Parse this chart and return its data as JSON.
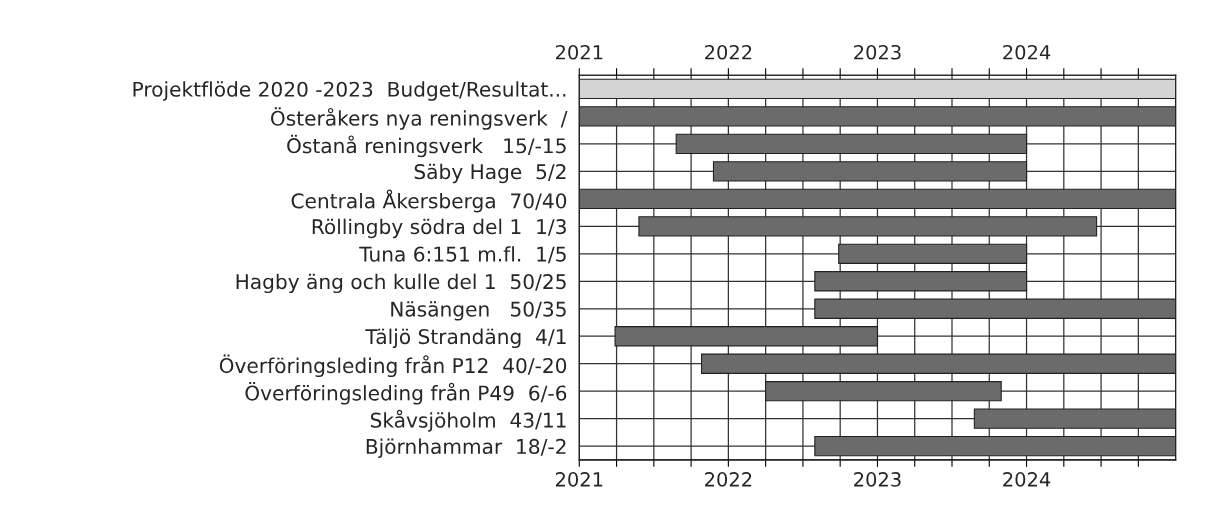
{
  "chart_data": {
    "type": "bar",
    "orientation": "horizontal",
    "categories": [
      "Projektflöde 2020 -2023  Budget/Resultat...",
      "Österåkers nya reningsverk  /",
      "Östanå reningsverk   15/-15",
      "Säby Hage  5/2",
      "Centrala Åkersberga  70/40",
      "Röllingby södra del 1  1/3",
      "Tuna 6:151 m.fl.  1/5",
      "Hagby äng och kulle del 1  50/25",
      "Näsängen   50/35",
      "Täljö Strandäng  4/1",
      "Överföringsleding från P12  40/-20",
      "Överföringsleding från P49  6/-6",
      "Skåvsjöholm  43/11",
      "Björnhammar  18/-2"
    ],
    "base": [
      2021,
      2021,
      2021.65,
      2021.9,
      2021,
      2021.4,
      2022.74,
      2022.58,
      2022.58,
      2021.24,
      2021.82,
      2022.25,
      2023.65,
      2022.58
    ],
    "values": [
      4,
      4,
      2.35,
      2.1,
      4,
      3.07,
      1.26,
      1.42,
      2.42,
      1.76,
      3.18,
      1.58,
      1.35,
      2.42
    ],
    "colors": [
      "#d4d4d4",
      "#6b6b6b",
      "#6b6b6b",
      "#6b6b6b",
      "#6b6b6b",
      "#6b6b6b",
      "#6b6b6b",
      "#6b6b6b",
      "#6b6b6b",
      "#6b6b6b",
      "#6b6b6b",
      "#6b6b6b",
      "#6b6b6b",
      "#6b6b6b"
    ],
    "xlim": [
      2021,
      2025
    ],
    "xticks": [
      2021,
      {
        "value": 2021.25,
        "label": null
      },
      {
        "value": 2021.5,
        "label": null
      },
      {
        "value": 2021.75,
        "label": null
      },
      2022,
      {
        "value": 2022.25,
        "label": null
      },
      {
        "value": 2022.5,
        "label": null
      },
      {
        "value": 2022.75,
        "label": null
      },
      2023,
      {
        "value": 2023.25,
        "label": null
      },
      {
        "value": 2023.5,
        "label": null
      },
      {
        "value": 2023.75,
        "label": null
      },
      2024,
      {
        "value": 2024.25,
        "label": null
      },
      {
        "value": 2024.5,
        "label": null
      },
      {
        "value": 2024.75,
        "label": null
      }
    ],
    "x2lim": [
      2021,
      2025
    ],
    "x2ticks": [
      2021,
      {
        "value": 2021.25,
        "label": null
      },
      {
        "value": 2021.5,
        "label": null
      },
      {
        "value": 2021.75,
        "label": null
      },
      2022,
      {
        "value": 2022.25,
        "label": null
      },
      {
        "value": 2022.5,
        "label": null
      },
      {
        "value": 2022.75,
        "label": null
      },
      2023,
      {
        "value": 2023.25,
        "label": null
      },
      {
        "value": 2023.5,
        "label": null
      },
      {
        "value": 2023.75,
        "label": null
      },
      2024,
      {
        "value": 2024.25,
        "label": null
      },
      {
        "value": 2024.5,
        "label": null
      },
      {
        "value": 2024.75,
        "label": null
      }
    ],
    "grid": true,
    "legend": false
  }
}
